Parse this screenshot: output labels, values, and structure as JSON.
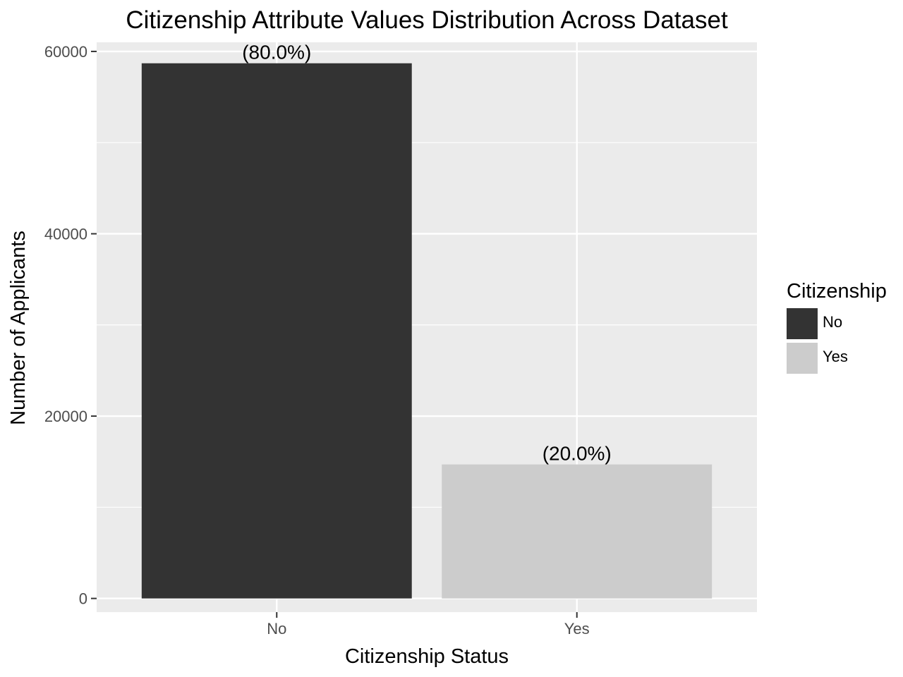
{
  "chart_data": {
    "type": "bar",
    "title": "Citizenship Attribute Values Distribution Across Dataset",
    "xlabel": "Citizenship Status",
    "ylabel": "Number of Applicants",
    "categories": [
      "No",
      "Yes"
    ],
    "values": [
      58700,
      14700
    ],
    "data_labels": [
      "(80.0%)",
      "(20.0%)"
    ],
    "colors": [
      "#333333",
      "#cccccc"
    ],
    "ylim": [
      -1500,
      61000
    ],
    "y_ticks": [
      0,
      20000,
      40000,
      60000
    ],
    "y_tick_labels": [
      "0",
      "20000",
      "40000",
      "60000"
    ],
    "grid": true,
    "legend": {
      "title": "Citizenship",
      "position": "right",
      "items": [
        {
          "label": "No",
          "color": "#333333"
        },
        {
          "label": "Yes",
          "color": "#cccccc"
        }
      ]
    },
    "panel_background": "#ebebeb",
    "grid_color": "#ffffff"
  }
}
